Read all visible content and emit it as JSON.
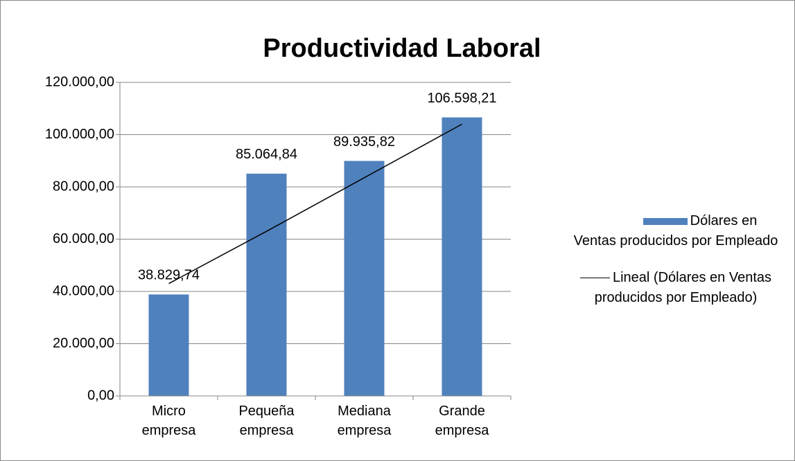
{
  "chart_data": {
    "type": "bar",
    "title": "Productividad Laboral",
    "categories": [
      "Micro empresa",
      "Pequeña empresa",
      "Mediana empresa",
      "Grande empresa"
    ],
    "series": [
      {
        "name": "Dólares en Ventas producidos por Empleado",
        "color": "#4f81bd",
        "values": [
          38829.74,
          85064.84,
          89935.82,
          106598.21
        ],
        "value_labels": [
          "38.829,74",
          "85.064,84",
          "89.935,82",
          "106.598,21"
        ]
      },
      {
        "name": "Lineal (Dólares en Ventas producidos por Empleado)",
        "color": "#000000",
        "type": "line",
        "values": [
          43000,
          63000,
          83500,
          104000
        ]
      }
    ],
    "ylim": [
      0,
      120000
    ],
    "yticks": [
      {
        "value": 0,
        "label": "0,00"
      },
      {
        "value": 20000,
        "label": "20.000,00"
      },
      {
        "value": 40000,
        "label": "40.000,00"
      },
      {
        "value": 60000,
        "label": "60.000,00"
      },
      {
        "value": 80000,
        "label": "80.000,00"
      },
      {
        "value": 100000,
        "label": "100.000,00"
      },
      {
        "value": 120000,
        "label": "120.000,00"
      }
    ],
    "grid": true,
    "legend": "right"
  }
}
